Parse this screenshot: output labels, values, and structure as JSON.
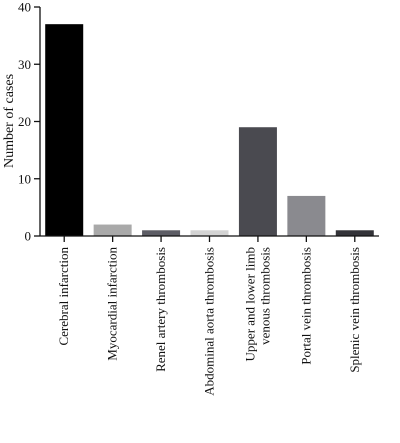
{
  "chart_data": {
    "type": "bar",
    "title": "",
    "xlabel": "",
    "ylabel": "Number of cases",
    "ylim": [
      0,
      40
    ],
    "yticks": [
      0,
      10,
      20,
      30,
      40
    ],
    "grid": false,
    "legend": "none",
    "categories": [
      [
        "Cerebral infarction"
      ],
      [
        "Myocardial infarction"
      ],
      [
        "Renel artery thrombosis"
      ],
      [
        "Abdominal aorta thrombosis"
      ],
      [
        "Upper and lower limb",
        "venous thrombosis"
      ],
      [
        "Portal vein thrombosis"
      ],
      [
        "Splenic vein thrombosis"
      ]
    ],
    "values": [
      37,
      2,
      1,
      1,
      19,
      7,
      1
    ],
    "colors": [
      "#000000",
      "#a9a9a9",
      "#5d5d65",
      "#d3d3d3",
      "#4a4a50",
      "#8a8a8f",
      "#333338"
    ]
  }
}
